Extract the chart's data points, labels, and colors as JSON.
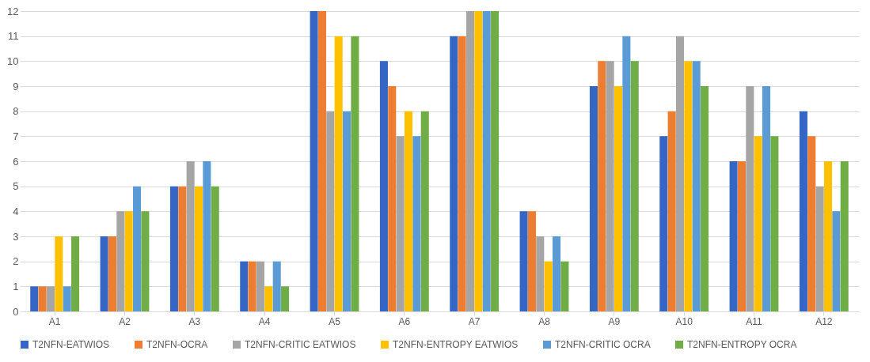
{
  "chart_data": {
    "type": "bar",
    "categories": [
      "A1",
      "A2",
      "A3",
      "A4",
      "A5",
      "A6",
      "A7",
      "A8",
      "A9",
      "A10",
      "A11",
      "A12"
    ],
    "series": [
      {
        "name": "T2NFN-EATWIOS",
        "color": "#3566c6",
        "values": [
          1,
          3,
          5,
          2,
          12,
          10,
          11,
          4,
          9,
          7,
          6,
          8
        ]
      },
      {
        "name": "T2NFN-OCRA",
        "color": "#ed7d31",
        "values": [
          1,
          3,
          5,
          2,
          12,
          9,
          11,
          4,
          10,
          8,
          6,
          7
        ]
      },
      {
        "name": "T2NFN-CRITIC EATWIOS",
        "color": "#a5a5a5",
        "values": [
          1,
          4,
          6,
          2,
          8,
          7,
          12,
          3,
          10,
          11,
          9,
          5
        ]
      },
      {
        "name": "T2NFN-ENTROPY EATWIOS",
        "color": "#ffc000",
        "values": [
          3,
          4,
          5,
          1,
          11,
          8,
          12,
          2,
          9,
          10,
          7,
          6
        ]
      },
      {
        "name": "T2NFN-CRITIC OCRA",
        "color": "#5b9bd5",
        "values": [
          1,
          5,
          6,
          2,
          8,
          7,
          12,
          3,
          11,
          10,
          9,
          4
        ]
      },
      {
        "name": "T2NFN-ENTROPY OCRA",
        "color": "#70ad47",
        "values": [
          3,
          4,
          5,
          1,
          11,
          8,
          12,
          2,
          10,
          9,
          7,
          6
        ]
      }
    ],
    "ylim": [
      0,
      12
    ],
    "yticks": [
      0,
      1,
      2,
      3,
      4,
      5,
      6,
      7,
      8,
      9,
      10,
      11,
      12
    ],
    "grid": "y",
    "legend": "bottom"
  }
}
